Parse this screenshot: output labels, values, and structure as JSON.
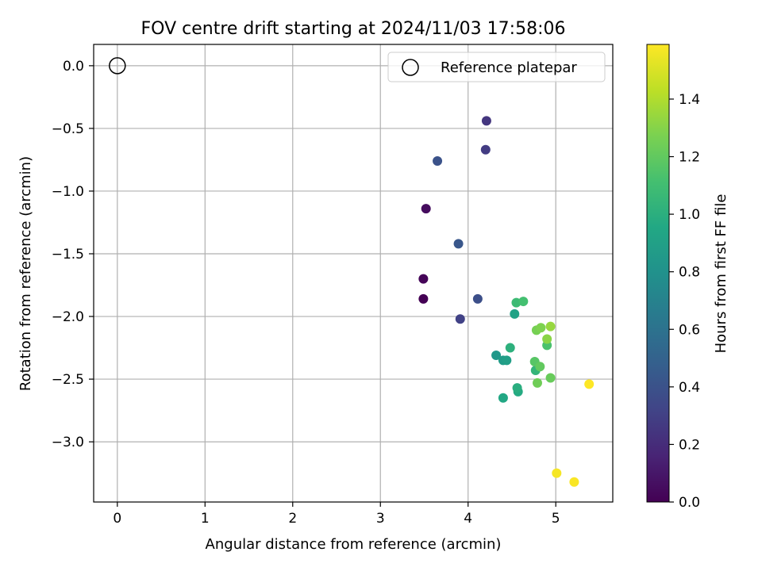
{
  "chart_data": {
    "type": "scatter",
    "title": "FOV centre drift starting at 2024/11/03 17:58:06",
    "xlabel": "Angular distance from reference (arcmin)",
    "ylabel": "Rotation from reference (arcmin)",
    "xlim": [
      -0.27,
      5.65
    ],
    "ylim": [
      -3.48,
      0.17
    ],
    "xticks": [
      "0",
      "1",
      "2",
      "3",
      "4",
      "5"
    ],
    "yticks": [
      "0.0",
      "−0.5",
      "−1.0",
      "−1.5",
      "−2.0",
      "−2.5",
      "−3.0"
    ],
    "grid": true,
    "legend": {
      "location": "top-right",
      "entries": [
        "Reference platepar"
      ]
    },
    "reference_point": {
      "x": 0.0,
      "y": 0.0,
      "label": "Reference platepar"
    },
    "colorbar": {
      "label": "Hours from first FF file",
      "colormap": "viridis",
      "range": [
        0.0,
        1.59
      ],
      "ticks": [
        "0.0",
        "0.2",
        "0.4",
        "0.6",
        "0.8",
        "1.0",
        "1.2",
        "1.4"
      ]
    },
    "points": [
      {
        "x": 3.49,
        "y": -1.86,
        "t": 0.0
      },
      {
        "x": 3.49,
        "y": -1.7,
        "t": 0.02
      },
      {
        "x": 3.52,
        "y": -1.14,
        "t": 0.05
      },
      {
        "x": 4.21,
        "y": -0.44,
        "t": 0.25
      },
      {
        "x": 4.2,
        "y": -0.67,
        "t": 0.28
      },
      {
        "x": 3.91,
        "y": -2.02,
        "t": 0.31
      },
      {
        "x": 4.11,
        "y": -1.86,
        "t": 0.38
      },
      {
        "x": 3.65,
        "y": -0.76,
        "t": 0.4
      },
      {
        "x": 3.89,
        "y": -1.42,
        "t": 0.43
      },
      {
        "x": 4.32,
        "y": -2.31,
        "t": 0.84
      },
      {
        "x": 4.4,
        "y": -2.35,
        "t": 0.87
      },
      {
        "x": 4.44,
        "y": -2.35,
        "t": 0.89
      },
      {
        "x": 4.53,
        "y": -1.98,
        "t": 0.91
      },
      {
        "x": 4.4,
        "y": -2.65,
        "t": 0.95
      },
      {
        "x": 4.57,
        "y": -2.6,
        "t": 0.97
      },
      {
        "x": 4.56,
        "y": -2.57,
        "t": 0.99
      },
      {
        "x": 4.48,
        "y": -2.25,
        "t": 1.01
      },
      {
        "x": 4.77,
        "y": -2.43,
        "t": 1.04
      },
      {
        "x": 4.55,
        "y": -1.89,
        "t": 1.08
      },
      {
        "x": 4.63,
        "y": -1.88,
        "t": 1.11
      },
      {
        "x": 4.9,
        "y": -2.23,
        "t": 1.13
      },
      {
        "x": 4.76,
        "y": -2.36,
        "t": 1.17
      },
      {
        "x": 4.82,
        "y": -2.4,
        "t": 1.2
      },
      {
        "x": 4.94,
        "y": -2.49,
        "t": 1.22
      },
      {
        "x": 4.79,
        "y": -2.53,
        "t": 1.24
      },
      {
        "x": 4.78,
        "y": -2.11,
        "t": 1.26
      },
      {
        "x": 4.83,
        "y": -2.09,
        "t": 1.28
      },
      {
        "x": 4.9,
        "y": -2.18,
        "t": 1.31
      },
      {
        "x": 4.94,
        "y": -2.08,
        "t": 1.34
      },
      {
        "x": 5.01,
        "y": -3.25,
        "t": 1.57
      },
      {
        "x": 5.21,
        "y": -3.32,
        "t": 1.58
      },
      {
        "x": 5.38,
        "y": -2.54,
        "t": 1.59
      }
    ]
  }
}
